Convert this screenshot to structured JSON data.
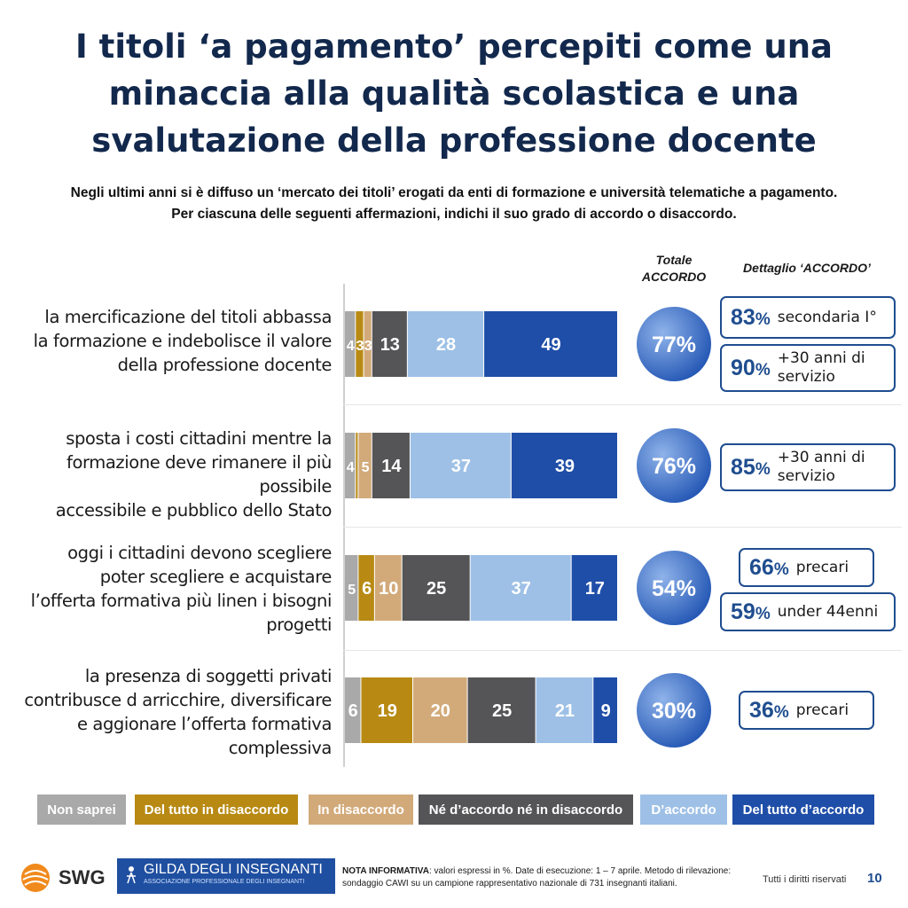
{
  "header": {
    "title": "I titoli ‘a pagamento’ percepiti come una minaccia alla qualità scolastica e una svalutazione della professione docente",
    "subtitle_line1": "Negli ultimi anni si è diffuso un ‘mercato dei titoli’ erogati da enti di formazione e università telematiche a pagamento.",
    "subtitle_line2": "Per ciascuna delle seguenti affermazioni, indichi il suo grado di accordo o disaccordo."
  },
  "columns": {
    "totale": "Totale ACCORDO",
    "dettaglio": "Dettaglio ‘ACCORDO’"
  },
  "colors": {
    "non_saprei": "#a9a9a9",
    "del_tutto_disaccordo": "#b88a13",
    "in_disaccordo": "#d2aa7a",
    "ne_ne": "#555557",
    "d_accordo": "#9ec0e6",
    "del_tutto_accordo": "#1f4ea8",
    "title": "#12284c",
    "accent": "#1f4d8f"
  },
  "chart_data": {
    "type": "bar",
    "orientation": "horizontal-stacked",
    "unit": "%",
    "categories": [
      "la mercificazione del titoli abbassa la formazione e indebolisce il valore della professione docente",
      "sposta i costi cittadini mentre la formazione deve rimanere il più possibile accessibile e pubblico dello Stato",
      "oggi i cittadini devono scegliere poter scegliere e acquistare l’offerta formativa più linen i bisogni progetti",
      "la presenza di soggetti privati contribusce d arricchire, diversificare e aggionare l’offerta formativa complessiva"
    ],
    "series": [
      {
        "name": "Non saprei",
        "values": [
          4,
          4,
          5,
          6
        ]
      },
      {
        "name": "Del tutto in disaccordo",
        "values": [
          3,
          1,
          6,
          19
        ]
      },
      {
        "name": "In disaccordo",
        "values": [
          3,
          5,
          10,
          20
        ]
      },
      {
        "name": "Né d’accordo né in disaccordo",
        "values": [
          13,
          14,
          25,
          25
        ]
      },
      {
        "name": "D’accordo",
        "values": [
          28,
          37,
          37,
          21
        ]
      },
      {
        "name": "Del tutto d’accordo",
        "values": [
          49,
          39,
          17,
          9
        ]
      }
    ],
    "segment_labels": [
      [
        "4",
        "3",
        "3",
        "13",
        "28",
        "49"
      ],
      [
        "4",
        "",
        "5",
        "14",
        "37",
        "39"
      ],
      [
        "5",
        "6",
        "10",
        "25",
        "37",
        "17"
      ],
      [
        "6",
        "19",
        "20",
        "25",
        "21",
        "9"
      ]
    ],
    "totale_accordo": [
      "77%",
      "76%",
      "54%",
      "30%"
    ],
    "legend_position": "bottom"
  },
  "rows": [
    {
      "label_lines": [
        "la mercificazione del titoli abbassa",
        "la formazione e indebolisce il valore",
        "della professione docente"
      ],
      "details": [
        {
          "pct": "83",
          "text_lines": [
            "secondaria I°"
          ]
        },
        {
          "pct": "90",
          "text_lines": [
            "+30 anni di",
            "servizio"
          ]
        }
      ]
    },
    {
      "label_lines": [
        "sposta i costi cittadini mentre la",
        "formazione deve rimanere il più possibile",
        "accessibile e pubblico dello Stato"
      ],
      "details": [
        {
          "pct": "85",
          "text_lines": [
            "+30 anni di",
            "servizio"
          ]
        }
      ]
    },
    {
      "label_lines": [
        "oggi i cittadini devono scegliere",
        "poter scegliere e acquistare",
        "l’offerta formativa più linen i bisogni",
        "progetti"
      ],
      "details": [
        {
          "pct": "66",
          "text_lines": [
            "precari"
          ]
        },
        {
          "pct": "59",
          "text_lines": [
            "under 44enni"
          ]
        }
      ]
    },
    {
      "label_lines": [
        "la presenza di soggetti privati",
        "contribusce d arricchire, diversificare",
        "e aggionare l’offerta formativa",
        "complessiva"
      ],
      "details": [
        {
          "pct": "36",
          "text_lines": [
            "precari"
          ]
        }
      ]
    }
  ],
  "legend": [
    "Non saprei",
    "Del tutto in disaccordo",
    "In disaccordo",
    "Né d’accordo né in disaccordo",
    "D’accordo",
    "Del tutto d’accordo"
  ],
  "footer": {
    "swg": "SWG",
    "gilda_main": "GILDA DEGLI INSEGNANTI",
    "gilda_sub": "ASSOCIAZIONE PROFESSIONALE DEGLI INSEGNANTI",
    "nota_label": "NOTA INFORMATIVA",
    "nota_text": ": valori espressi in %. Date di esecuzione: 1 – 7 aprile. Metodo di rilevazione: sondaggio CAWI su un campione rappresentativo nazionale di 731 insegnanti italiani.",
    "rights": "Tutti i diritti riservati",
    "page": "10"
  }
}
